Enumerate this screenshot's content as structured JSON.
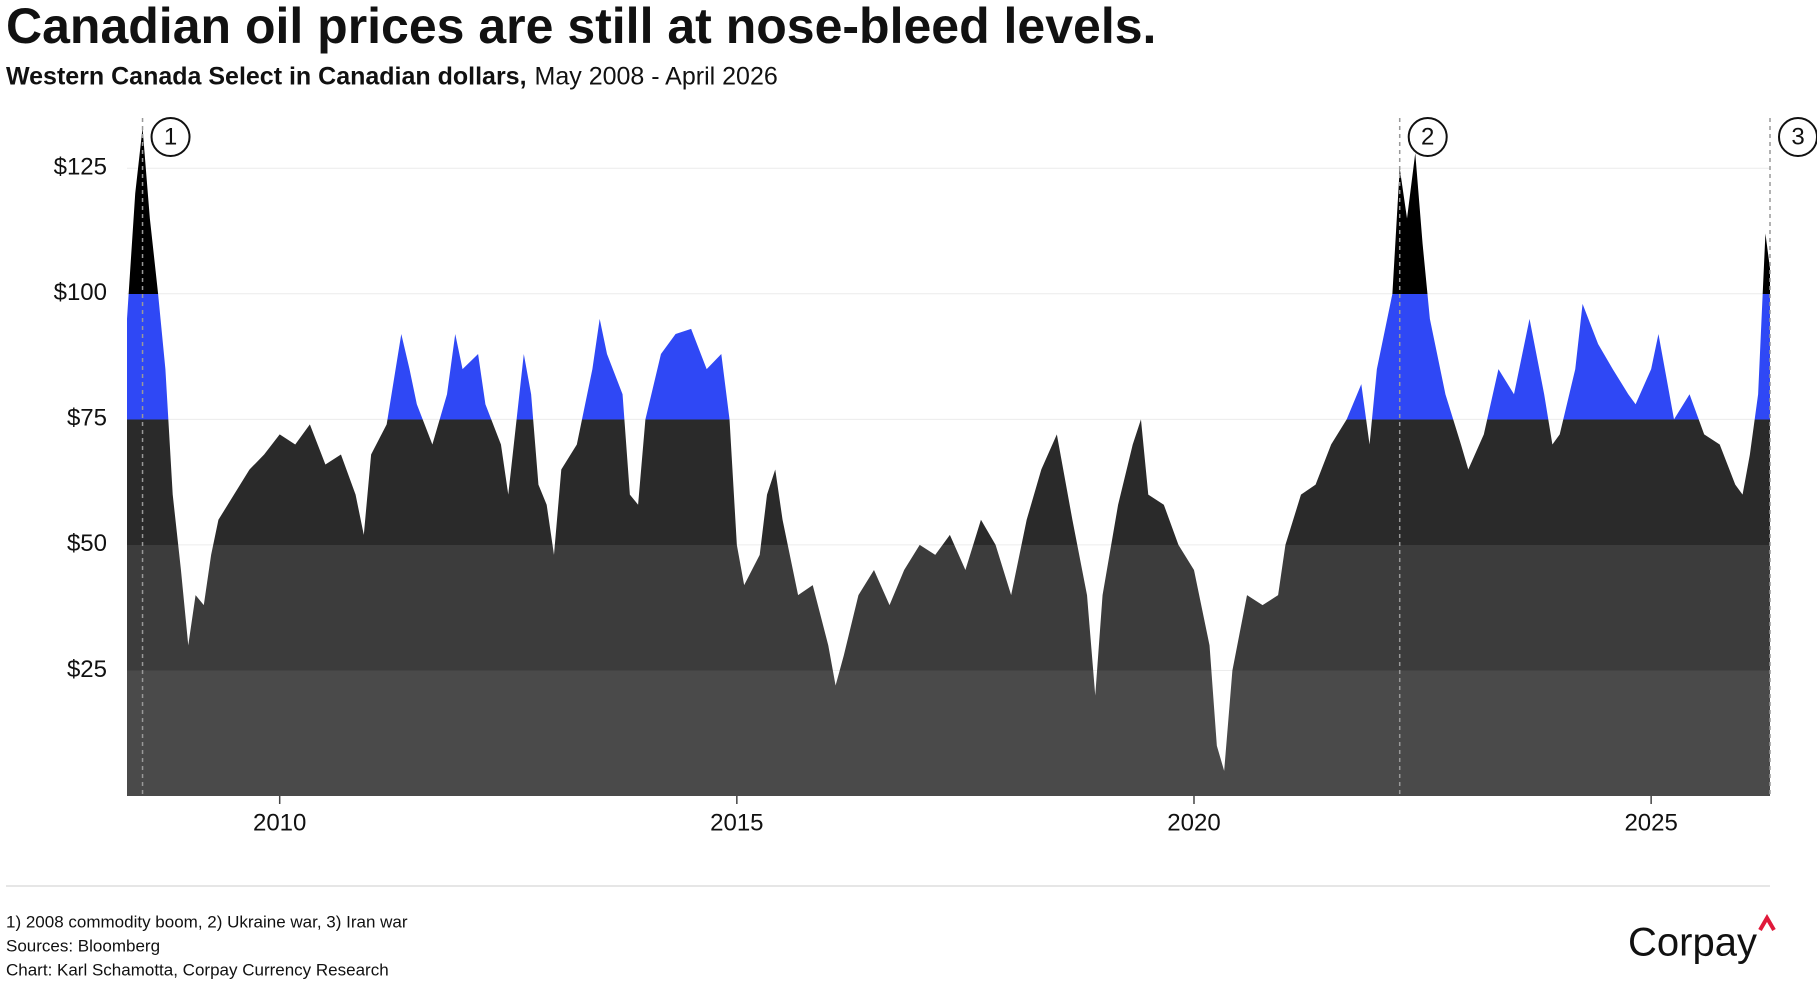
{
  "chart_data": {
    "type": "area",
    "title": "Canadian oil prices are still at nose-bleed levels.",
    "subtitle": "Western Canada Select in Canadian dollars,",
    "subtitle_range": "May 2008 - April 2026",
    "x": [
      2008.33,
      2008.42,
      2008.5,
      2008.58,
      2008.67,
      2008.75,
      2008.83,
      2008.92,
      2009.0,
      2009.08,
      2009.17,
      2009.25,
      2009.33,
      2009.5,
      2009.67,
      2009.83,
      2010.0,
      2010.17,
      2010.33,
      2010.5,
      2010.67,
      2010.83,
      2010.92,
      2011.0,
      2011.17,
      2011.33,
      2011.42,
      2011.5,
      2011.67,
      2011.83,
      2011.92,
      2012.0,
      2012.17,
      2012.25,
      2012.42,
      2012.5,
      2012.67,
      2012.75,
      2012.83,
      2012.92,
      2013.0,
      2013.08,
      2013.25,
      2013.42,
      2013.5,
      2013.58,
      2013.75,
      2013.83,
      2013.92,
      2014.0,
      2014.17,
      2014.33,
      2014.5,
      2014.67,
      2014.83,
      2014.92,
      2015.0,
      2015.08,
      2015.25,
      2015.33,
      2015.42,
      2015.5,
      2015.67,
      2015.83,
      2016.0,
      2016.08,
      2016.17,
      2016.33,
      2016.5,
      2016.67,
      2016.83,
      2017.0,
      2017.17,
      2017.33,
      2017.5,
      2017.67,
      2017.83,
      2018.0,
      2018.17,
      2018.33,
      2018.5,
      2018.67,
      2018.83,
      2018.92,
      2019.0,
      2019.17,
      2019.33,
      2019.42,
      2019.5,
      2019.67,
      2019.83,
      2020.0,
      2020.17,
      2020.25,
      2020.33,
      2020.42,
      2020.58,
      2020.75,
      2020.92,
      2021.0,
      2021.17,
      2021.33,
      2021.5,
      2021.67,
      2021.83,
      2021.92,
      2022.0,
      2022.17,
      2022.25,
      2022.33,
      2022.42,
      2022.5,
      2022.58,
      2022.75,
      2022.92,
      2023.0,
      2023.17,
      2023.33,
      2023.5,
      2023.67,
      2023.83,
      2023.92,
      2024.0,
      2024.17,
      2024.25,
      2024.42,
      2024.58,
      2024.75,
      2024.83,
      2025.0,
      2025.08,
      2025.25,
      2025.42,
      2025.58,
      2025.75,
      2025.92,
      2026.0,
      2026.08,
      2026.17,
      2026.25,
      2026.3
    ],
    "values": [
      95,
      120,
      133,
      115,
      100,
      85,
      60,
      45,
      30,
      40,
      38,
      48,
      55,
      60,
      65,
      68,
      72,
      70,
      74,
      66,
      68,
      60,
      52,
      68,
      74,
      92,
      85,
      78,
      70,
      80,
      92,
      85,
      88,
      78,
      70,
      60,
      88,
      80,
      62,
      58,
      48,
      65,
      70,
      85,
      95,
      88,
      80,
      60,
      58,
      75,
      88,
      92,
      93,
      85,
      88,
      75,
      50,
      42,
      48,
      60,
      65,
      55,
      40,
      42,
      30,
      22,
      28,
      40,
      45,
      38,
      45,
      50,
      48,
      52,
      45,
      55,
      50,
      40,
      55,
      65,
      72,
      55,
      40,
      20,
      40,
      58,
      70,
      75,
      60,
      58,
      50,
      45,
      30,
      10,
      5,
      25,
      40,
      38,
      40,
      50,
      60,
      62,
      70,
      75,
      82,
      70,
      85,
      100,
      125,
      115,
      128,
      110,
      95,
      80,
      70,
      65,
      72,
      85,
      80,
      95,
      80,
      70,
      72,
      85,
      98,
      90,
      85,
      80,
      78,
      85,
      92,
      75,
      80,
      72,
      70,
      62,
      60,
      68,
      80,
      112,
      105
    ],
    "xlim": [
      2008.33,
      2026.3
    ],
    "xticks": [
      2010,
      2015,
      2020,
      2025
    ],
    "ylim": [
      0,
      135
    ],
    "yticks": [
      {
        "value": 25,
        "label": "$25"
      },
      {
        "value": 50,
        "label": "$50"
      },
      {
        "value": 75,
        "label": "$75"
      },
      {
        "value": 100,
        "label": "$100"
      },
      {
        "value": 125,
        "label": "$125"
      }
    ],
    "grid": true,
    "bands": [
      {
        "from": 0,
        "to": 25,
        "color": "#4a4a4a"
      },
      {
        "from": 25,
        "to": 50,
        "color": "#3c3c3c"
      },
      {
        "from": 50,
        "to": 75,
        "color": "#2a2a2a"
      },
      {
        "from": 75,
        "to": 100,
        "color": "#2f48f5"
      },
      {
        "from": 100,
        "to": 135,
        "color": "#000000"
      }
    ],
    "annotations": [
      {
        "label": "1",
        "x": 2008.5
      },
      {
        "label": "2",
        "x": 2022.25
      },
      {
        "label": "3",
        "x": 2026.3
      }
    ],
    "notes": [
      "1) 2008 commodity boom, 2) Ukraine war, 3) Iran war",
      "Sources: Bloomberg",
      "Chart: Karl Schamotta, Corpay Currency Research"
    ],
    "logo": "Corpay"
  }
}
